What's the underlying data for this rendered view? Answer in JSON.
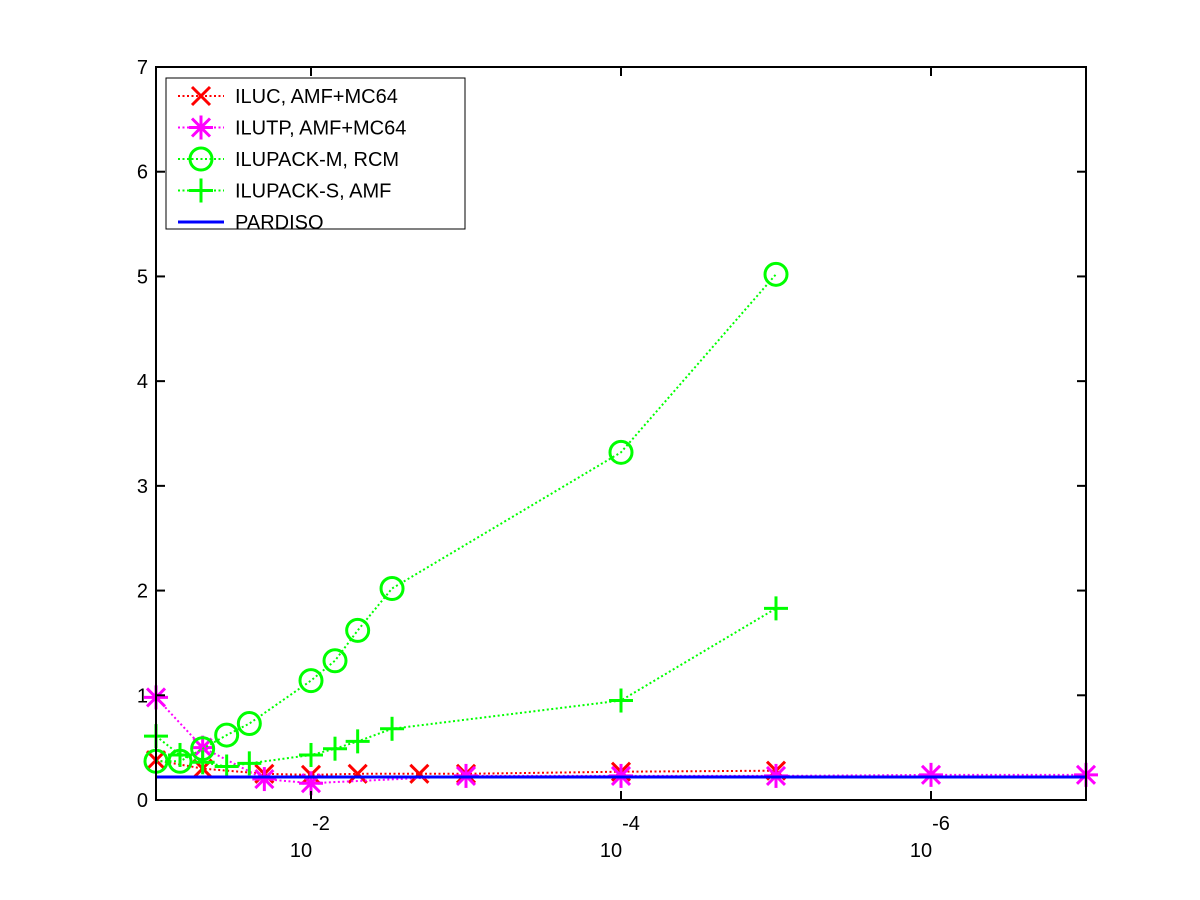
{
  "chart_data": {
    "type": "line",
    "title": "",
    "xlabel": "",
    "ylabel": "",
    "x_scale": "log",
    "x_direction": "decreasing",
    "xlim": [
      0.1,
      1e-07
    ],
    "ylim": [
      0,
      7
    ],
    "grid": false,
    "legend_position": "top-left",
    "y_ticks": [
      {
        "value": 0,
        "label": "0"
      },
      {
        "value": 1,
        "label": "1"
      },
      {
        "value": 2,
        "label": "2"
      },
      {
        "value": 3,
        "label": "3"
      },
      {
        "value": 4,
        "label": "4"
      },
      {
        "value": 5,
        "label": "5"
      },
      {
        "value": 6,
        "label": "6"
      },
      {
        "value": 7,
        "label": "7"
      }
    ],
    "x_ticks": [
      {
        "value": 0.01,
        "base": "10",
        "exponent": "-2"
      },
      {
        "value": 0.0001,
        "base": "10",
        "exponent": "-4"
      },
      {
        "value": 1e-06,
        "base": "10",
        "exponent": "-6"
      }
    ],
    "series": [
      {
        "name": "ILUC, AMF+MC64",
        "color": "#ff0000",
        "marker": "x",
        "line_style": "dotted",
        "points": [
          [
            0.1,
            0.38
          ],
          [
            0.05,
            0.3
          ],
          [
            0.02,
            0.25
          ],
          [
            0.01,
            0.24
          ],
          [
            0.005,
            0.25
          ],
          [
            0.002,
            0.25
          ],
          [
            0.001,
            0.25
          ],
          [
            0.0001,
            0.27
          ],
          [
            1e-05,
            0.28
          ]
        ]
      },
      {
        "name": "ILUTP, AMF+MC64",
        "color": "#ff00ff",
        "marker": "asterisk",
        "line_style": "dotted",
        "points": [
          [
            0.1,
            0.98
          ],
          [
            0.05,
            0.5
          ],
          [
            0.02,
            0.2
          ],
          [
            0.01,
            0.16
          ],
          [
            0.001,
            0.23
          ],
          [
            0.0001,
            0.23
          ],
          [
            1e-05,
            0.23
          ],
          [
            1e-06,
            0.24
          ],
          [
            1e-07,
            0.24
          ]
        ]
      },
      {
        "name": "ILUPACK-M, RCM",
        "color": "#00ff00",
        "marker": "circle",
        "line_style": "dotted",
        "points": [
          [
            0.1,
            0.37
          ],
          [
            0.07,
            0.37
          ],
          [
            0.05,
            0.49
          ],
          [
            0.035,
            0.62
          ],
          [
            0.025,
            0.73
          ],
          [
            0.01,
            1.14
          ],
          [
            0.007,
            1.33
          ],
          [
            0.005,
            1.62
          ],
          [
            0.003,
            2.02
          ],
          [
            0.0001,
            3.32
          ],
          [
            1e-05,
            5.02
          ]
        ]
      },
      {
        "name": "ILUPACK-S, AMF",
        "color": "#00ff00",
        "marker": "plus",
        "line_style": "dotted",
        "points": [
          [
            0.1,
            0.61
          ],
          [
            0.07,
            0.43
          ],
          [
            0.05,
            0.36
          ],
          [
            0.035,
            0.32
          ],
          [
            0.025,
            0.35
          ],
          [
            0.01,
            0.43
          ],
          [
            0.007,
            0.49
          ],
          [
            0.005,
            0.56
          ],
          [
            0.003,
            0.68
          ],
          [
            0.0001,
            0.95
          ],
          [
            1e-05,
            1.83
          ]
        ]
      },
      {
        "name": "PARDISO",
        "color": "#0000ff",
        "marker": "none",
        "line_style": "solid",
        "points": [
          [
            0.1,
            0.22
          ],
          [
            1e-07,
            0.22
          ]
        ]
      }
    ]
  }
}
